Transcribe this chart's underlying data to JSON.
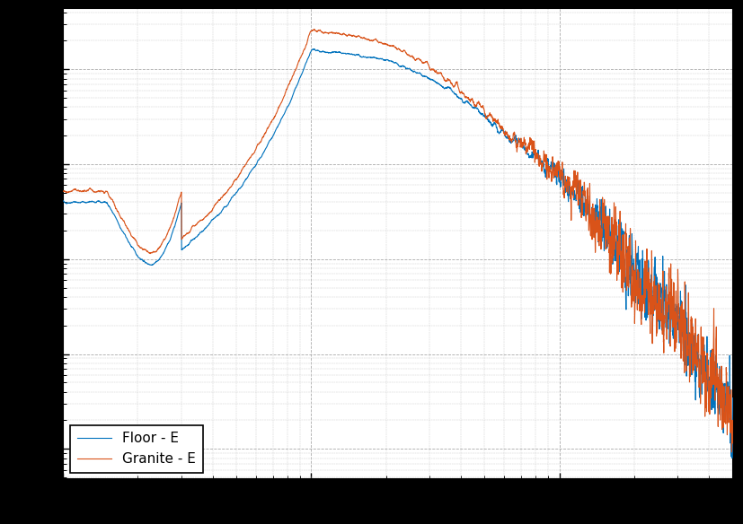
{
  "line1_label": "Floor - E",
  "line1_color": "#0072BD",
  "line2_label": "Granite - E",
  "line2_color": "#D95319",
  "background_color": "#ffffff",
  "figure_bg": "#000000",
  "xlim": [
    1,
    500
  ],
  "legend_loc": "lower left",
  "linewidth": 0.8,
  "seed_shared": 999,
  "seed_floor": 42,
  "seed_granite": 77
}
